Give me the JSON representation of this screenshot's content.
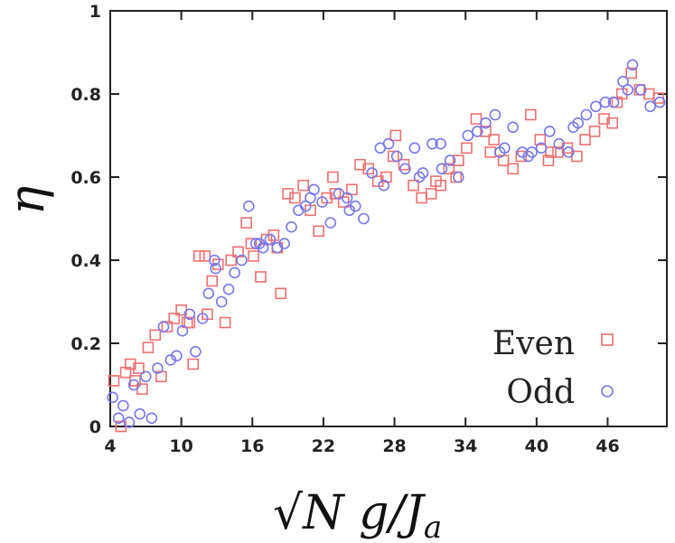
{
  "chart_data": {
    "type": "scatter",
    "title": "",
    "xlabel": "√N g/J_a",
    "xlabel_parts": {
      "radical": "√",
      "rest": "N g/J",
      "subscript": "a"
    },
    "ylabel": "η",
    "xlim": [
      4,
      51
    ],
    "ylim": [
      0,
      1
    ],
    "xticks": [
      4,
      10,
      16,
      22,
      28,
      34,
      40,
      46
    ],
    "yticks": [
      0,
      0.2,
      0.4,
      0.6,
      0.8,
      1
    ],
    "ytick_labels": [
      "0",
      "0.2",
      "0.4",
      "0.6",
      "0.8",
      "1"
    ],
    "grid": false,
    "legend_position": "bottom-right",
    "series": [
      {
        "name": "Even",
        "marker": "square",
        "color": "#f07070",
        "x": [
          4.3,
          4.9,
          5.3,
          5.7,
          6.1,
          6.7,
          7.2,
          7.8,
          8.3,
          8.8,
          9.4,
          10.0,
          10.5,
          11.0,
          11.5,
          12.0,
          12.6,
          13.1,
          13.7,
          14.2,
          14.8,
          15.5,
          16.1,
          16.7,
          17.2,
          17.8,
          18.4,
          19.0,
          19.6,
          20.3,
          20.9,
          21.6,
          22.3,
          23.0,
          23.7,
          24.4,
          25.1,
          25.8,
          26.6,
          27.3,
          28.1,
          28.8,
          29.6,
          30.3,
          31.1,
          31.9,
          32.6,
          33.4,
          34.1,
          34.9,
          35.7,
          36.4,
          37.2,
          38.0,
          38.7,
          39.5,
          40.3,
          41.0,
          41.8,
          42.6,
          43.4,
          44.1,
          44.9,
          45.7,
          46.4,
          47.2,
          48.0,
          48.7,
          49.5,
          50.3,
          12.2,
          15.9,
          18.1,
          22.8,
          27.9,
          31.5,
          33.2,
          36.1,
          41.2,
          46.8,
          10.7,
          6.4
        ],
        "y": [
          0.11,
          0.0,
          0.13,
          0.15,
          0.11,
          0.09,
          0.19,
          0.22,
          0.12,
          0.24,
          0.26,
          0.28,
          0.25,
          0.15,
          0.41,
          0.41,
          0.35,
          0.39,
          0.25,
          0.4,
          0.42,
          0.49,
          0.41,
          0.36,
          0.45,
          0.46,
          0.32,
          0.56,
          0.55,
          0.58,
          0.52,
          0.47,
          0.55,
          0.56,
          0.54,
          0.57,
          0.63,
          0.62,
          0.59,
          0.6,
          0.7,
          0.63,
          0.58,
          0.55,
          0.56,
          0.58,
          0.62,
          0.64,
          0.67,
          0.74,
          0.71,
          0.69,
          0.64,
          0.62,
          0.65,
          0.75,
          0.69,
          0.64,
          0.66,
          0.67,
          0.65,
          0.69,
          0.71,
          0.74,
          0.73,
          0.8,
          0.85,
          0.81,
          0.8,
          0.79,
          0.27,
          0.44,
          0.43,
          0.6,
          0.65,
          0.59,
          0.6,
          0.66,
          0.66,
          0.78,
          0.25,
          0.14
        ]
      },
      {
        "name": "Odd",
        "marker": "circle",
        "color": "#7777ee",
        "x": [
          4.2,
          4.7,
          5.1,
          5.6,
          6.0,
          6.5,
          7.0,
          7.5,
          8.0,
          8.5,
          9.1,
          9.6,
          10.1,
          10.7,
          11.2,
          11.8,
          12.3,
          12.9,
          13.4,
          14.0,
          14.5,
          15.1,
          15.7,
          16.3,
          16.9,
          17.5,
          18.1,
          18.7,
          19.3,
          19.9,
          20.5,
          21.2,
          21.9,
          22.6,
          23.3,
          24.0,
          24.7,
          25.4,
          26.1,
          26.8,
          27.5,
          28.2,
          28.9,
          29.7,
          30.4,
          31.2,
          31.9,
          32.7,
          33.4,
          34.2,
          35.0,
          35.7,
          36.5,
          37.3,
          38.0,
          38.8,
          39.6,
          40.4,
          41.1,
          41.9,
          42.7,
          43.5,
          44.2,
          45.0,
          45.8,
          46.5,
          47.3,
          48.1,
          48.8,
          49.6,
          50.4,
          12.8,
          16.6,
          20.9,
          24.2,
          27.1,
          30.1,
          32.0,
          36.9,
          39.3,
          43.1,
          47.7
        ],
        "y": [
          0.07,
          0.02,
          0.05,
          0.01,
          0.1,
          0.03,
          0.12,
          0.02,
          0.14,
          0.24,
          0.16,
          0.17,
          0.23,
          0.27,
          0.18,
          0.26,
          0.32,
          0.38,
          0.3,
          0.33,
          0.37,
          0.4,
          0.53,
          0.44,
          0.43,
          0.45,
          0.43,
          0.44,
          0.48,
          0.52,
          0.53,
          0.57,
          0.54,
          0.49,
          0.56,
          0.55,
          0.53,
          0.5,
          0.61,
          0.67,
          0.68,
          0.65,
          0.62,
          0.67,
          0.61,
          0.68,
          0.68,
          0.64,
          0.6,
          0.7,
          0.71,
          0.73,
          0.75,
          0.67,
          0.72,
          0.66,
          0.66,
          0.67,
          0.71,
          0.68,
          0.66,
          0.73,
          0.75,
          0.77,
          0.78,
          0.78,
          0.83,
          0.87,
          0.81,
          0.77,
          0.78,
          0.4,
          0.44,
          0.55,
          0.52,
          0.58,
          0.6,
          0.62,
          0.66,
          0.65,
          0.72,
          0.81
        ]
      }
    ]
  }
}
